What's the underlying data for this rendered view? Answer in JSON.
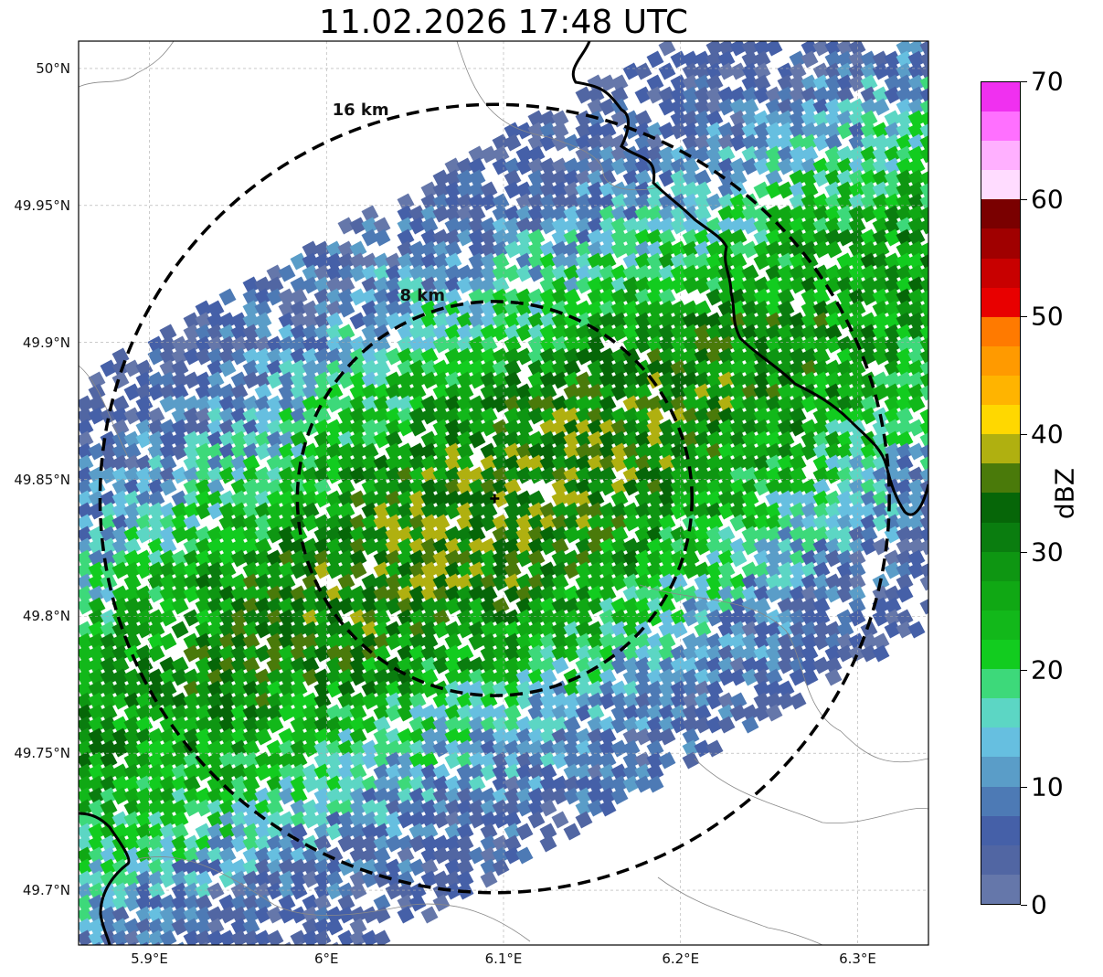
{
  "title": "11.02.2026 17:48 UTC",
  "map": {
    "lon_range": [
      5.86,
      6.34
    ],
    "lat_range": [
      49.68,
      50.01
    ],
    "lat_ticks": [
      {
        "value": 50.0,
        "label": "50°N"
      },
      {
        "value": 49.95,
        "label": "49.95°N"
      },
      {
        "value": 49.9,
        "label": "49.9°N"
      },
      {
        "value": 49.85,
        "label": "49.85°N"
      },
      {
        "value": 49.8,
        "label": "49.8°N"
      },
      {
        "value": 49.75,
        "label": "49.75°N"
      },
      {
        "value": 49.7,
        "label": "49.7°N"
      }
    ],
    "lon_ticks": [
      {
        "value": 5.9,
        "label": "5.9°E"
      },
      {
        "value": 6.0,
        "label": "6°E"
      },
      {
        "value": 6.1,
        "label": "6.1°E"
      },
      {
        "value": 6.2,
        "label": "6.2°E"
      },
      {
        "value": 6.3,
        "label": "6.3°E"
      }
    ],
    "gridlines": true,
    "radar_site": {
      "lon": 6.095,
      "lat": 49.843,
      "icon": "plus-marker-icon"
    },
    "range_rings": [
      {
        "label": "8 km",
        "radius_km": 8
      },
      {
        "label": "16 km",
        "radius_km": 16
      }
    ]
  },
  "colorbar": {
    "label": "dBZ",
    "ticks": [
      "0",
      "10",
      "20",
      "30",
      "40",
      "50",
      "60",
      "70"
    ],
    "colors": [
      "#6577aa",
      "#5166a3",
      "#4560a8",
      "#4d7ab5",
      "#5a9dc8",
      "#66bfe0",
      "#5cd6c4",
      "#3dd97a",
      "#12cc1f",
      "#12b81a",
      "#10a814",
      "#0e9612",
      "#0a7d0f",
      "#066608",
      "#4a7a0a",
      "#b0b010",
      "#ffd800",
      "#ffb400",
      "#ff9a00",
      "#ff7a00",
      "#e80000",
      "#c80000",
      "#a00000",
      "#7a0000",
      "#ffdcff",
      "#ffb0ff",
      "#ff70ff",
      "#f030f0"
    ]
  }
}
